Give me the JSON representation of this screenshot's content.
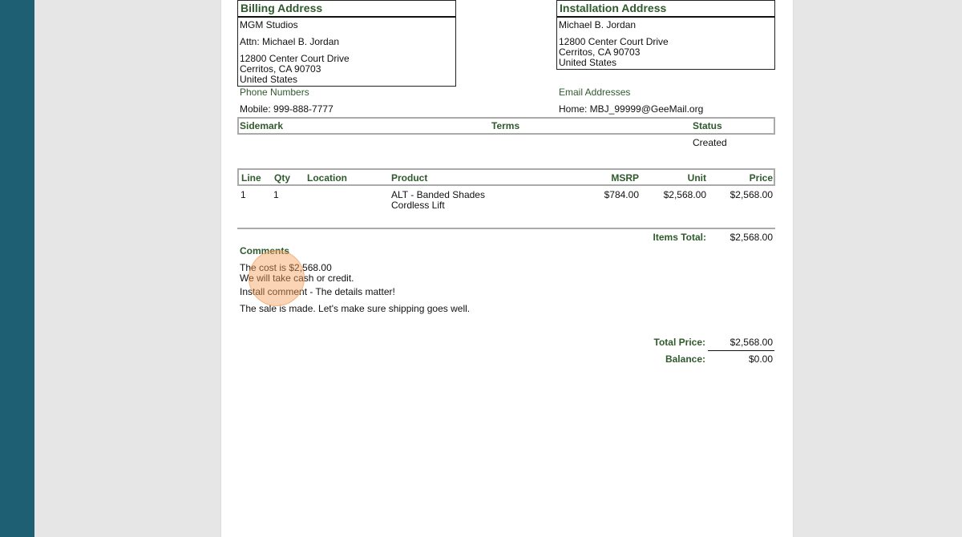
{
  "billing": {
    "title": "Billing Address",
    "name": "MGM Studios",
    "attn": "Attn: Michael B. Jordan",
    "street": "12800 Center Court Drive",
    "city": "Cerritos, CA 90703",
    "country": "United States"
  },
  "installation": {
    "title": "Installation Address",
    "name": "Michael B. Jordan",
    "street": "12800 Center Court Drive",
    "city": "Cerritos, CA 90703",
    "country": "United States"
  },
  "phone": {
    "label": "Phone Numbers",
    "value": "Mobile: 999-888-7777"
  },
  "email": {
    "label": "Email Addresses",
    "value": "Home: MBJ_99999@GeeMail.org"
  },
  "info": {
    "sidemark": "Sidemark",
    "terms": "Terms",
    "status": "Status",
    "status_value": "Created"
  },
  "items": {
    "headers": [
      "Line",
      "Qty",
      "Location",
      "Product",
      "MSRP",
      "Unit",
      "Price"
    ],
    "rows": [
      {
        "line": "1",
        "qty": "1",
        "location": "",
        "product": "ALT - Banded Shades",
        "product2": "Cordless Lift",
        "msrp": "$784.00",
        "unit": "$2,568.00",
        "price": "$2,568.00"
      }
    ],
    "total_label": "Items Total:",
    "total": "$2,568.00"
  },
  "comments": {
    "title": "Comments",
    "lines": [
      "The cost is $2,568.00",
      "We will take cash or credit.",
      "Install comment - The details matter!",
      "The sale is made. Let's make sure shipping goes well."
    ]
  },
  "totals": {
    "total_label": "Total Price:",
    "total": "$2,568.00",
    "balance_label": "Balance:",
    "balance": "$0.00"
  },
  "colors": {
    "sidebar": "#1f5f73",
    "heading": "#2f5a2c",
    "cursor": "#f4a05a"
  }
}
